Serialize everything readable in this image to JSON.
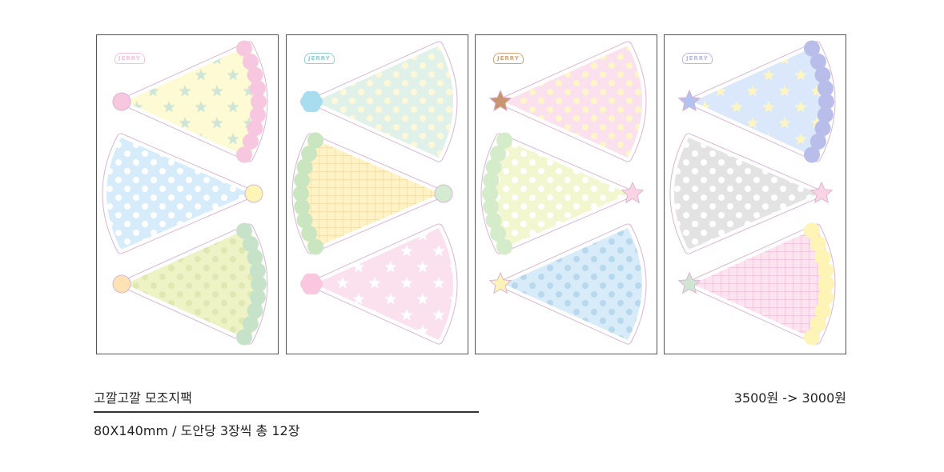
{
  "product": {
    "title": "고깔고깔 모조지팩",
    "spec": "80X140mm / 도안당 3장씩 총 12장",
    "price": "3500원 -> 3000원"
  },
  "designs": [
    {
      "logo": "JERRY",
      "logo_color": "#f4c3da",
      "hats": [
        {
          "dir": "left",
          "body": "#fdfad4",
          "pattern": "stars",
          "pat": "#cfe6d6",
          "fringe": "#f7c6df",
          "tip": "pom",
          "tipc": "#f7c6df"
        },
        {
          "dir": "right",
          "body": "#d7ecfb",
          "pattern": "dots",
          "pat": "#ffffff",
          "fringe": null,
          "tip": "pom",
          "tipc": "#fdf4b6"
        },
        {
          "dir": "left",
          "body": "#eef3c6",
          "pattern": "dots",
          "pat": "#dfe7b3",
          "fringe": "#c6e3c9",
          "tip": "pom",
          "tipc": "#fde3b4"
        }
      ]
    },
    {
      "logo": "JERRY",
      "logo_color": "#8fd0d7",
      "hats": [
        {
          "dir": "left",
          "body": "#dff1e9",
          "pattern": "dots",
          "pat": "#fff8d8",
          "fringe": null,
          "tip": "flower",
          "tipc": "#a8dcef"
        },
        {
          "dir": "right",
          "body": "#fdf3c6",
          "pattern": "plaid",
          "pat": "#f5d69e",
          "fringe": "#c9e6c0",
          "tip": "pom",
          "tipc": "#d3ecd1"
        },
        {
          "dir": "left",
          "body": "#fbe0ee",
          "pattern": "stars",
          "pat": "#ffffff",
          "fringe": null,
          "tip": "flower",
          "tipc": "#f9c7df"
        }
      ]
    },
    {
      "logo": "JERRY",
      "logo_color": "#d4a276",
      "hats": [
        {
          "dir": "left",
          "body": "#fbe1ee",
          "pattern": "dots",
          "pat": "#fdf6c8",
          "fringe": null,
          "tip": "star",
          "tipc": "#c9956e"
        },
        {
          "dir": "right",
          "body": "#f3f7cf",
          "pattern": "dots",
          "pat": "#ffffff",
          "fringe": "#d4ecc9",
          "tip": "star",
          "tipc": "#fbd4e4"
        },
        {
          "dir": "left",
          "body": "#d7ecf8",
          "pattern": "dots",
          "pat": "#b8d8ee",
          "fringe": null,
          "tip": "star",
          "tipc": "#fdf3b8"
        }
      ]
    },
    {
      "logo": "JERRY",
      "logo_color": "#b4b7e8",
      "hats": [
        {
          "dir": "left",
          "body": "#dbe7fb",
          "pattern": "stars",
          "pat": "#fdf6c0",
          "fringe": "#b9bde9",
          "tip": "star",
          "tipc": "#b3c2ee"
        },
        {
          "dir": "right",
          "body": "#e3e3e3",
          "pattern": "dots",
          "pat": "#ffffff",
          "fringe": null,
          "tip": "star",
          "tipc": "#fbd4e4"
        },
        {
          "dir": "left",
          "body": "#fbe3ef",
          "pattern": "plaid",
          "pat": "#f0b9d5",
          "fringe": "#fdf4b6",
          "tip": "star",
          "tipc": "#cfe6d2"
        }
      ]
    }
  ]
}
